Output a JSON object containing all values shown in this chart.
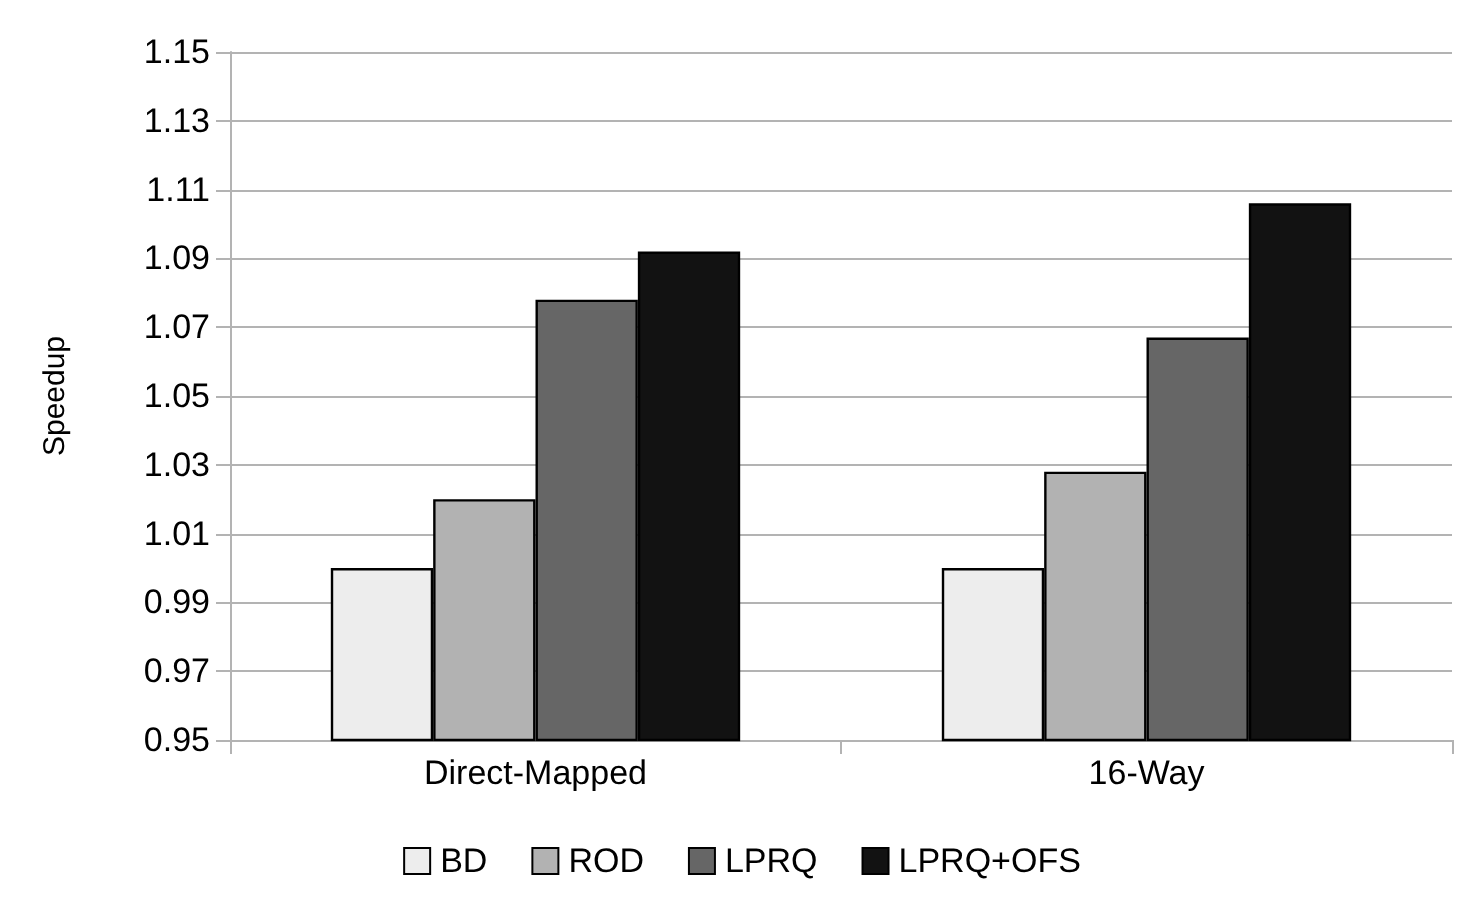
{
  "chart_data": {
    "type": "bar",
    "ylabel": "Speedup",
    "categories": [
      "Direct-Mapped",
      "16-Way"
    ],
    "series": [
      {
        "name": "BD",
        "color": "#ededed",
        "values": [
          1.0,
          1.0
        ]
      },
      {
        "name": "ROD",
        "color": "#b2b2b2",
        "values": [
          1.02,
          1.028
        ]
      },
      {
        "name": "LPRQ",
        "color": "#666666",
        "values": [
          1.078,
          1.067
        ]
      },
      {
        "name": "LPRQ+OFS",
        "color": "#121212",
        "values": [
          1.092,
          1.106
        ]
      }
    ],
    "ylim": [
      0.95,
      1.15
    ],
    "yticks": [
      0.95,
      0.97,
      0.99,
      1.01,
      1.03,
      1.05,
      1.07,
      1.09,
      1.11,
      1.13,
      1.15
    ],
    "grid": "y",
    "legend": "bottom"
  }
}
